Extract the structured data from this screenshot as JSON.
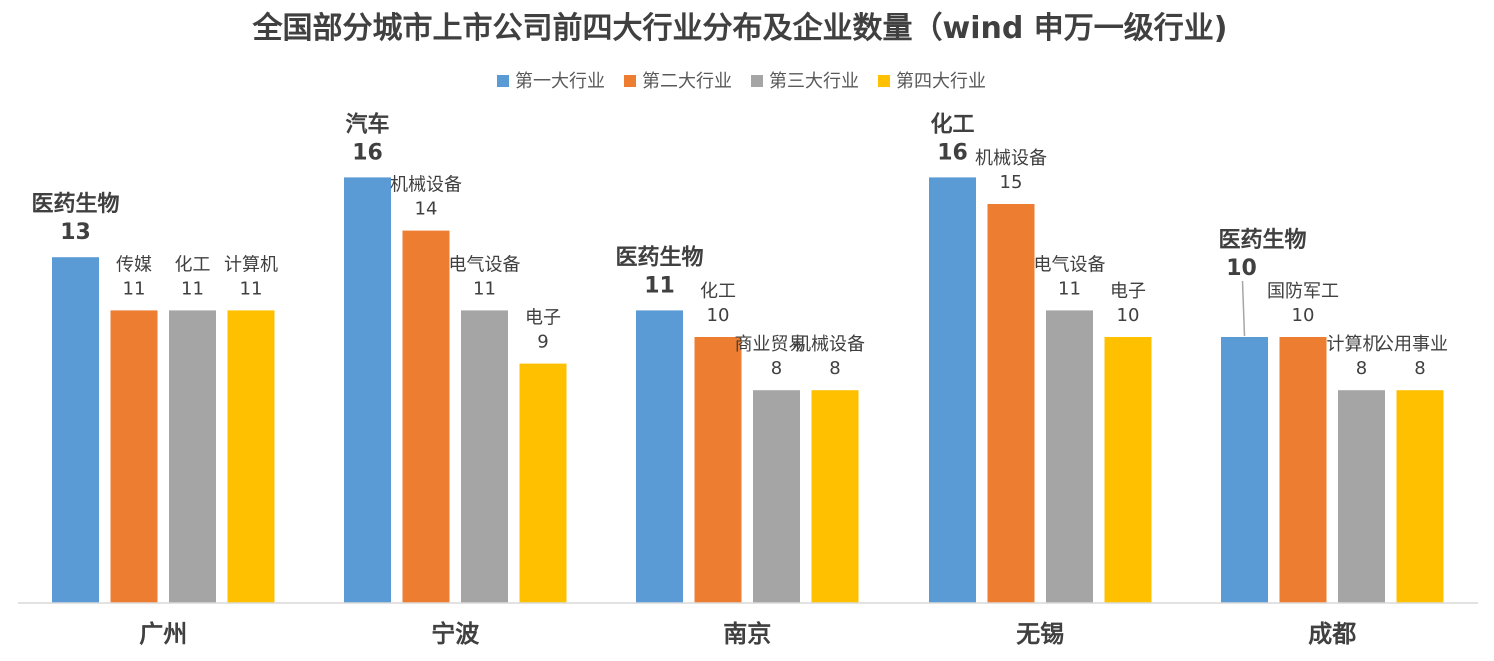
{
  "chart_data": {
    "type": "bar",
    "title": "全国部分城市上市公司前四大行业分布及企业数量（wind 申万一级行业)",
    "categories": [
      "广州",
      "宁波",
      "南京",
      "无锡",
      "成都"
    ],
    "series": [
      {
        "name": "第一大行业",
        "color": "#5B9BD5",
        "values": [
          13,
          16,
          11,
          16,
          10
        ],
        "industries": [
          "医药生物",
          "汽车",
          "医药生物",
          "化工",
          "医药生物"
        ]
      },
      {
        "name": "第二大行业",
        "color": "#ED7D31",
        "values": [
          11,
          14,
          10,
          15,
          10
        ],
        "industries": [
          "传媒",
          "机械设备",
          "化工",
          "机械设备",
          "国防军工"
        ]
      },
      {
        "name": "第三大行业",
        "color": "#A5A5A5",
        "values": [
          11,
          11,
          8,
          11,
          8
        ],
        "industries": [
          "化工",
          "电气设备",
          "商业贸易",
          "电气设备",
          "计算机"
        ]
      },
      {
        "name": "第四大行业",
        "color": "#FFC000",
        "values": [
          11,
          9,
          8,
          10,
          8
        ],
        "industries": [
          "计算机",
          "电子",
          "机械设备",
          "电子",
          "公用事业"
        ]
      }
    ],
    "ylim": [
      0,
      16
    ],
    "legend_position": "top",
    "grid": false
  }
}
